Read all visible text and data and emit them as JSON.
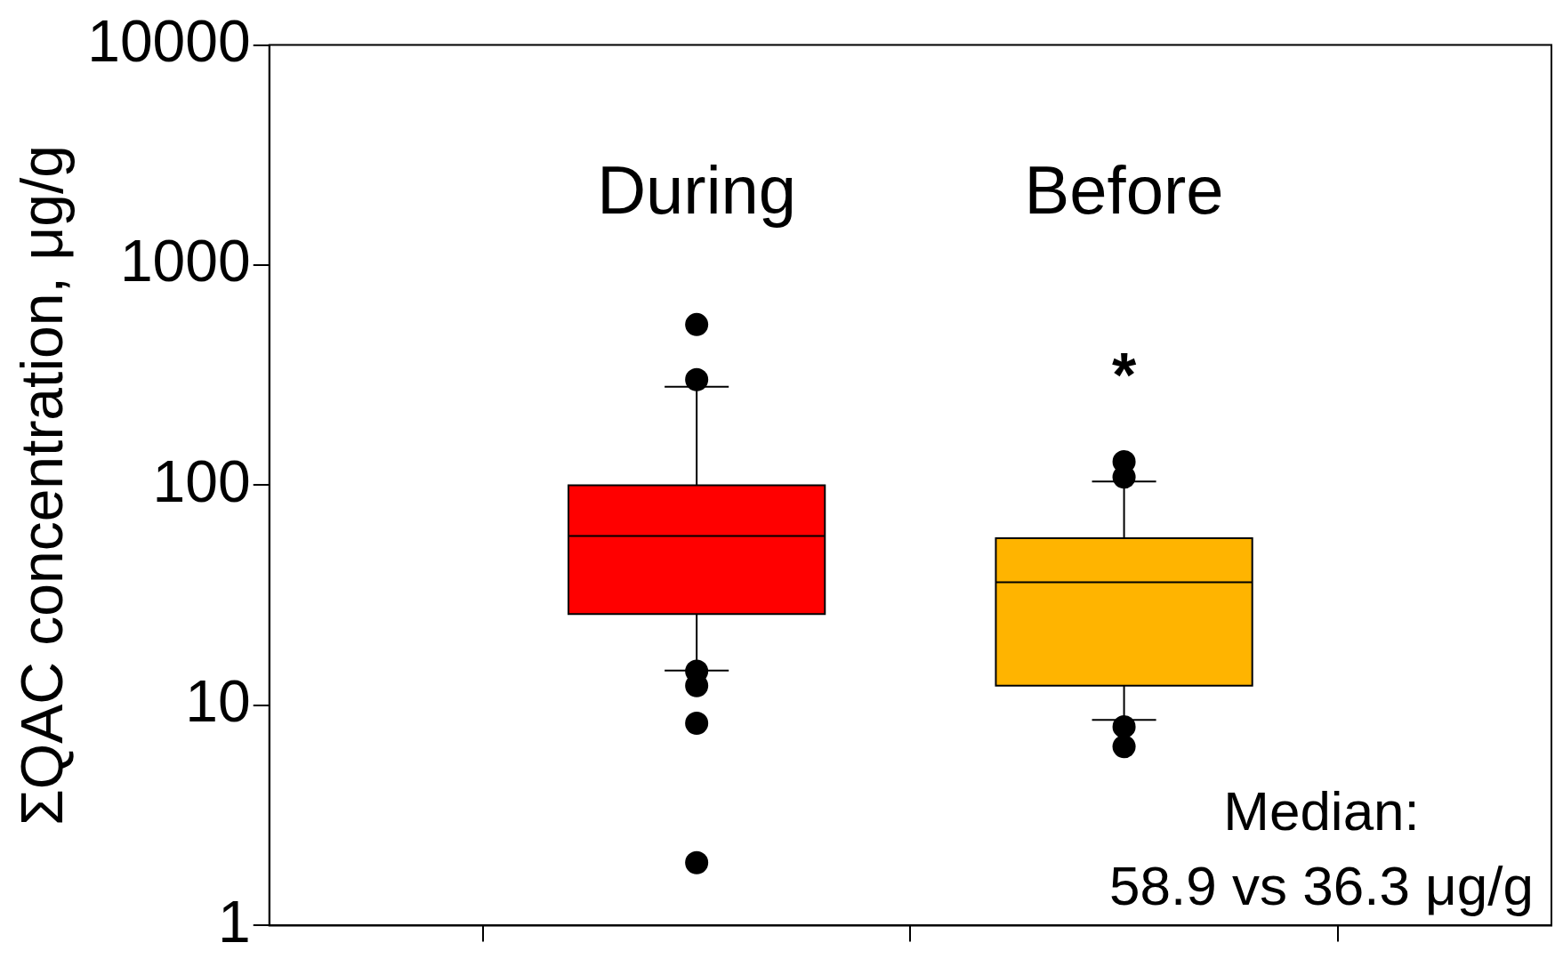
{
  "chart_data": {
    "type": "box",
    "ylabel": "ΣQAC concentration, μg/g",
    "categories": [
      "During",
      "Before"
    ],
    "colors": [
      "#ff0000",
      "#ffb400"
    ],
    "boxes": [
      {
        "low": 14.4,
        "q1": 26,
        "median": 58.9,
        "q3": 100,
        "high": 280,
        "outliers": [
          537,
          302,
          14.3,
          12.3,
          8.3,
          1.93
        ]
      },
      {
        "low": 8.6,
        "q1": 12.3,
        "median": 36.3,
        "q3": 57.5,
        "high": 104,
        "outliers": [
          128,
          109,
          8.0,
          6.5
        ]
      }
    ],
    "log": true,
    "ylim": [
      1,
      10000
    ],
    "yticks": [
      1,
      10,
      100,
      1000,
      10000
    ],
    "annotations": [
      "*",
      "Median:\n58.9 vs 36.3 μg/g"
    ]
  }
}
